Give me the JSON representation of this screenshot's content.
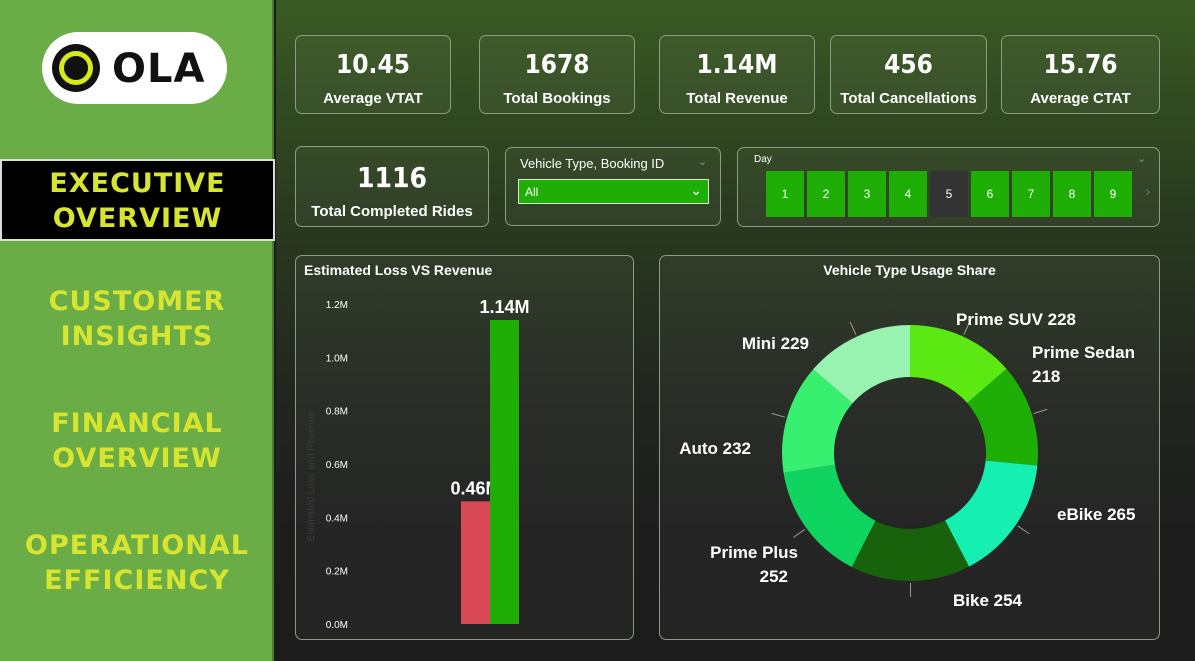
{
  "sidebar": {
    "logo_text": "OLA",
    "nav": [
      {
        "line1": "EXECUTIVE",
        "line2": "OVERVIEW"
      },
      {
        "line1": "CUSTOMER",
        "line2": "INSIGHTS"
      },
      {
        "line1": "FINANCIAL",
        "line2": "OVERVIEW"
      },
      {
        "line1": "OPERATIONAL",
        "line2": "EFFICIENCY"
      }
    ]
  },
  "kpis": [
    {
      "value": "10.45",
      "label": "Average VTAT"
    },
    {
      "value": "1678",
      "label": "Total Bookings"
    },
    {
      "value": "1.14M",
      "label": "Total Revenue"
    },
    {
      "value": "456",
      "label": "Total Cancellations"
    },
    {
      "value": "15.76",
      "label": "Average CTAT"
    }
  ],
  "completed": {
    "value": "1116",
    "label": "Total Completed Rides"
  },
  "filter": {
    "title": "Vehicle Type, Booking ID",
    "selected": "All"
  },
  "day_slicer": {
    "title": "Day",
    "days": [
      "1",
      "2",
      "3",
      "4",
      "5",
      "6",
      "7",
      "8",
      "9"
    ],
    "selected": [
      "1",
      "2",
      "3",
      "4",
      "6",
      "7",
      "8",
      "9"
    ]
  },
  "colors": {
    "accent_green": "#1fae05",
    "loss_red": "#d94955",
    "sidebar_bg": "#6aac45",
    "nav_text": "#d8e530"
  },
  "chart_data": [
    {
      "type": "bar",
      "title": "Estimated Loss VS Revenue",
      "ylabel": "Estimated Loss and Revenue",
      "ylim": [
        0,
        1.2
      ],
      "y_tick_labels": [
        "0.0M",
        "0.2M",
        "0.4M",
        "0.6M",
        "0.8M",
        "1.0M",
        "1.2M"
      ],
      "series": [
        {
          "name": "Estimated Loss",
          "values": [
            0.46
          ],
          "label": "0.46M",
          "color": "#d94955"
        },
        {
          "name": "Revenue",
          "values": [
            1.14
          ],
          "label": "1.14M",
          "color": "#1fae05"
        }
      ],
      "grid": false
    },
    {
      "type": "pie",
      "title": "Vehicle Type Usage Share",
      "donut": true,
      "slices": [
        {
          "label": "Prime SUV",
          "value": 228,
          "text": "Prime SUV 228",
          "color": "#5ce812"
        },
        {
          "label": "Prime Sedan",
          "value": 218,
          "text": "Prime Sedan 218",
          "color": "#1fae05"
        },
        {
          "label": "eBike",
          "value": 265,
          "text": "eBike 265",
          "color": "#16efb2"
        },
        {
          "label": "Bike",
          "value": 254,
          "text": "Bike 254",
          "color": "#18620c"
        },
        {
          "label": "Prime Plus",
          "value": 252,
          "text": "Prime Plus 252",
          "color": "#0fd460"
        },
        {
          "label": "Auto",
          "value": 232,
          "text": "Auto 232",
          "color": "#37f070"
        },
        {
          "label": "Mini",
          "value": 229,
          "text": "Mini 229",
          "color": "#98f2b0"
        }
      ]
    }
  ]
}
